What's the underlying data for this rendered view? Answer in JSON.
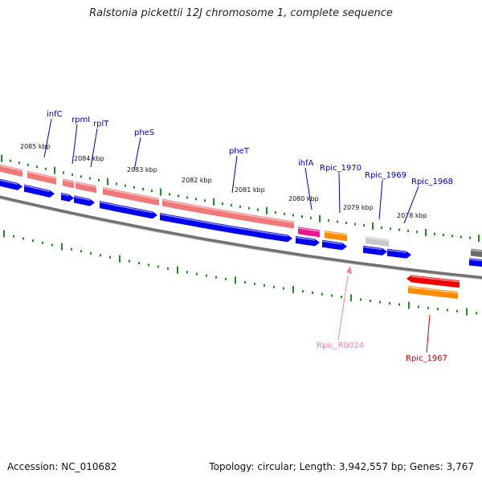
{
  "header": {
    "title": "Ralstonia pickettii 12J chromosome 1, complete sequence"
  },
  "footer": {
    "accession": "Accession: NC_010682",
    "topology": "Topology: circular; Length: 3,942,557 bp; Genes: 3,767"
  },
  "colors": {
    "cds_forward": "#0000ee",
    "trna_band": "#f07878",
    "integration_host_factor": "#ee1493",
    "orange_feature": "#ff8c00",
    "hypothetical": "#c8c8c8",
    "highlight_red": "#ee0000",
    "backbone": "#707070",
    "tick": "#228b22",
    "label_blue": "#0000aa",
    "label_pink": "#ee82b4",
    "label_red": "#cc0000"
  },
  "scale_labels": [
    "2085 kbp",
    "2084 kbp",
    "2083 kbp",
    "2082 kbp",
    "2081 kbp",
    "2080 kbp",
    "2079 kbp",
    "2078 kbp"
  ],
  "gene_labels": [
    {
      "text": "infC",
      "color": "label_blue"
    },
    {
      "text": "rpmI",
      "color": "label_blue"
    },
    {
      "text": "rplT",
      "color": "label_blue"
    },
    {
      "text": "pheS",
      "color": "label_blue"
    },
    {
      "text": "pheT",
      "color": "label_blue"
    },
    {
      "text": "ihfA",
      "color": "label_blue"
    },
    {
      "text": "Rpic_1970",
      "color": "label_blue"
    },
    {
      "text": "Rpic_1969",
      "color": "label_blue"
    },
    {
      "text": "Rpic_1968",
      "color": "label_blue"
    },
    {
      "text": "Rpic_R0024",
      "color": "label_pink"
    },
    {
      "text": "Rpic_1967",
      "color": "label_red"
    }
  ]
}
